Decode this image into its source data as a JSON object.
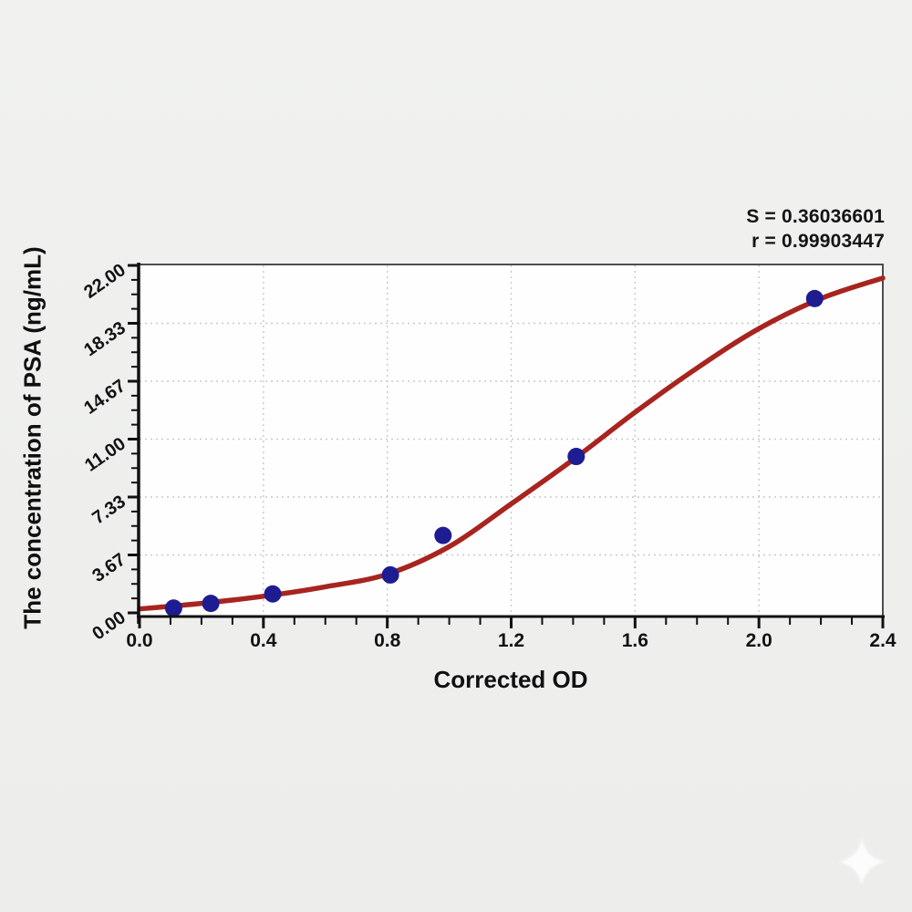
{
  "chart_data": {
    "type": "scatter",
    "title": "",
    "xlabel": "Corrected OD",
    "ylabel": "The concentration of PSA (ng/mL)",
    "xlim": [
      0,
      2.4
    ],
    "ylim": [
      0,
      22
    ],
    "grid": "dotted",
    "legend": "none",
    "x_tick_values": [
      0,
      0.4,
      0.8,
      1.2,
      1.6,
      2.0,
      2.4
    ],
    "x_tick_labels": [
      "0.0",
      "0.4",
      "0.8",
      "1.2",
      "1.6",
      "2.0",
      "2.4"
    ],
    "x_minor_step": 0.1,
    "y_tick_values": [
      0,
      3.6667,
      7.3333,
      11,
      14.6667,
      18.3333,
      22
    ],
    "y_tick_labels": [
      "0.00",
      "3.67",
      "7.33",
      "11.00",
      "14.67",
      "18.33",
      "22.00"
    ],
    "y_minor_divisions": 4,
    "points": [
      {
        "x": 0.11,
        "y": 0.3
      },
      {
        "x": 0.23,
        "y": 0.6
      },
      {
        "x": 0.43,
        "y": 1.2
      },
      {
        "x": 0.81,
        "y": 2.4
      },
      {
        "x": 0.98,
        "y": 4.9
      },
      {
        "x": 1.41,
        "y": 9.9
      },
      {
        "x": 2.18,
        "y": 19.9
      }
    ],
    "curve_anchors": [
      [
        0,
        0.25
      ],
      [
        0.2,
        0.6
      ],
      [
        0.4,
        1.05
      ],
      [
        0.6,
        1.65
      ],
      [
        0.8,
        2.45
      ],
      [
        1.0,
        4.2
      ],
      [
        1.2,
        6.9
      ],
      [
        1.4,
        9.7
      ],
      [
        1.6,
        12.7
      ],
      [
        1.8,
        15.5
      ],
      [
        2.0,
        18.0
      ],
      [
        2.2,
        19.9
      ],
      [
        2.4,
        21.2
      ]
    ],
    "annotations": [
      "S = 0.36036601",
      "r = 0.99903447"
    ]
  },
  "colors": {
    "curve": "#a8241f",
    "point": "#1e1c91",
    "grid": "#c9c9c9",
    "axis": "#101010",
    "frame": "#4d4d4d",
    "text": "#121212",
    "page_bg": "#eff0ee",
    "plot_bg": "#fefefe",
    "watermark": "#ffffff"
  },
  "watermark": {
    "icon": "sparkle-star-icon"
  }
}
